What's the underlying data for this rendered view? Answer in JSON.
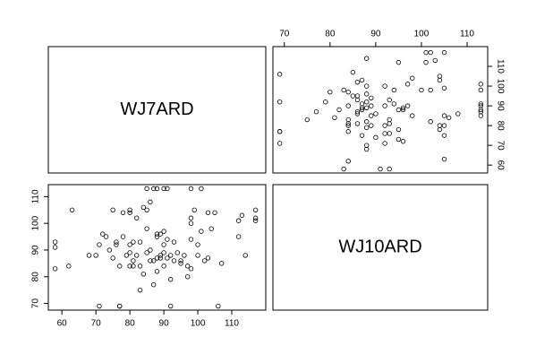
{
  "chart_data": {
    "type": "scatter_matrix",
    "variables": [
      {
        "name": "WJ7ARD",
        "lim": [
          56,
          120
        ],
        "ticks": [
          60,
          70,
          80,
          90,
          100,
          110
        ],
        "values": [
          58,
          58,
          58,
          62,
          63,
          68,
          70,
          71,
          71,
          72,
          73,
          74,
          75,
          75,
          76,
          76,
          77,
          77,
          77,
          78,
          78,
          79,
          80,
          80,
          80,
          80,
          80,
          81,
          81,
          81,
          82,
          82,
          83,
          83,
          83,
          84,
          84,
          85,
          85,
          85,
          85,
          86,
          86,
          86,
          87,
          87,
          87,
          88,
          88,
          88,
          88,
          88,
          89,
          89,
          89,
          90,
          90,
          90,
          90,
          90,
          91,
          91,
          91,
          92,
          92,
          92,
          93,
          93,
          94,
          95,
          95,
          96,
          97,
          97,
          98,
          98,
          98,
          98,
          98,
          99,
          100,
          100,
          101,
          101,
          102,
          103,
          103,
          104,
          105,
          106,
          107,
          112,
          112,
          113,
          114,
          117,
          117,
          117
        ]
      },
      {
        "name": "WJ10ARD",
        "lim": [
          67.5,
          114.5
        ],
        "ticks": [
          70,
          80,
          90,
          100,
          110
        ],
        "values": [
          93,
          91,
          83,
          84,
          105,
          88,
          88,
          69,
          92,
          96,
          95,
          90,
          87,
          105,
          93,
          92,
          69,
          69,
          84,
          95,
          104,
          88,
          89,
          84,
          92,
          105,
          104,
          93,
          86,
          84,
          88,
          102,
          75,
          84,
          93,
          81,
          106,
          98,
          105,
          113,
          89,
          86,
          108,
          90,
          113,
          86,
          77,
          82,
          87,
          95,
          96,
          113,
          88,
          96,
          87,
          113,
          89,
          97,
          92,
          84,
          113,
          94,
          87,
          88,
          79,
          69,
          93,
          86,
          89,
          86,
          85,
          88,
          80,
          84,
          113,
          102,
          100,
          94,
          83,
          105,
          92,
          88,
          113,
          97,
          86,
          104,
          87,
          98,
          104,
          69,
          85,
          95,
          101,
          103,
          88,
          101,
          102,
          105
        ]
      }
    ]
  }
}
